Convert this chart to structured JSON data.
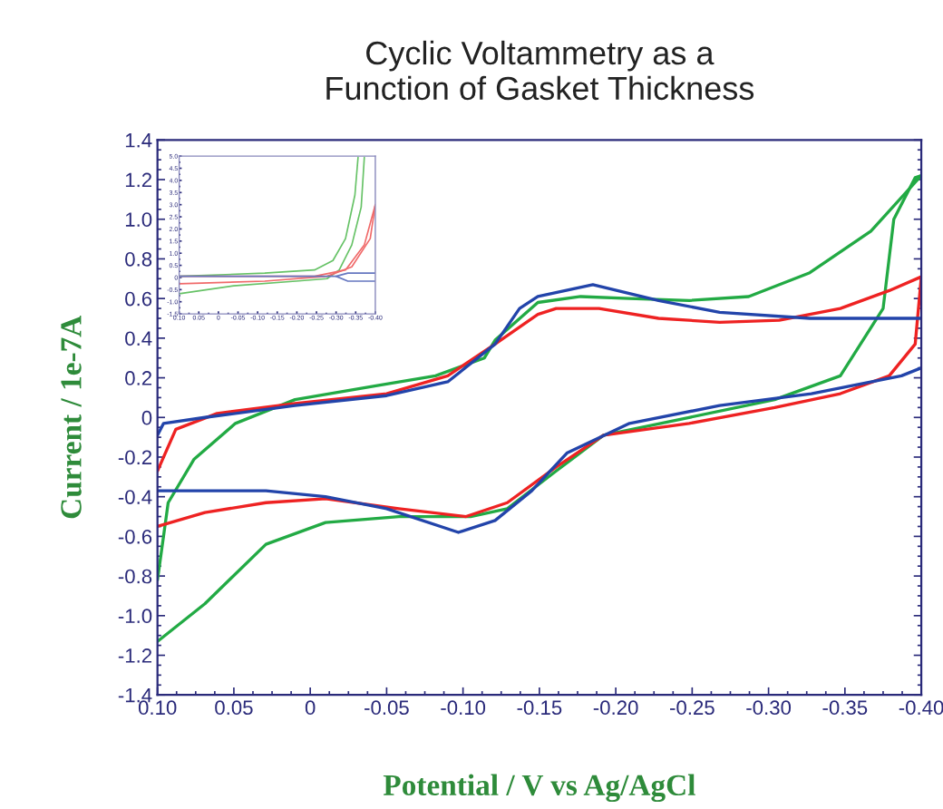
{
  "chart_data": [
    {
      "type": "line",
      "title": "Cyclic Voltammetry as a\nFunction of Gasket Thickness",
      "xlabel": "Potential / V vs Ag/AgCl",
      "ylabel": "Current / 1e-7A",
      "xlim": [
        0.1,
        -0.4
      ],
      "ylim": [
        -1.4,
        1.4
      ],
      "xticks": [
        {
          "value": 0.1,
          "label": "0.10"
        },
        {
          "value": 0.05,
          "label": "0.05"
        },
        {
          "value": 0,
          "label": "0"
        },
        {
          "value": -0.05,
          "label": "-0.05"
        },
        {
          "value": -0.1,
          "label": "-0.10"
        },
        {
          "value": -0.15,
          "label": "-0.15"
        },
        {
          "value": -0.2,
          "label": "-0.20"
        },
        {
          "value": -0.25,
          "label": "-0.25"
        },
        {
          "value": -0.3,
          "label": "-0.30"
        },
        {
          "value": -0.35,
          "label": "-0.35"
        },
        {
          "value": -0.4,
          "label": "-0.40"
        }
      ],
      "yticks": [
        1.4,
        1.2,
        {
          "value": 1.0,
          "label": "1.0"
        },
        0.8,
        0.6,
        0.4,
        0.2,
        0,
        -0.2,
        -0.4,
        -0.6,
        -0.8,
        {
          "value": -1.0,
          "label": "-1.0"
        },
        -1.2,
        -1.4
      ],
      "grid": false,
      "marker": "none",
      "line_style": "solid",
      "series": [
        {
          "color": "#22aa44",
          "x": [
            0.1,
            0.069,
            0.029,
            -0.01,
            -0.058,
            -0.105,
            -0.129,
            -0.161,
            -0.192,
            -0.248,
            -0.304,
            -0.347,
            -0.375,
            -0.382,
            -0.396,
            -0.4
          ],
          "values": [
            -1.13,
            -0.94,
            -0.64,
            -0.53,
            -0.5,
            -0.5,
            -0.46,
            -0.27,
            -0.09,
            0.0,
            0.09,
            0.21,
            0.55,
            1.0,
            1.21,
            1.22
          ]
        },
        {
          "color": "#22aa44",
          "x": [
            -0.4,
            -0.367,
            -0.327,
            -0.287,
            -0.248,
            -0.209,
            -0.177,
            -0.149,
            -0.121,
            -0.114,
            -0.082,
            -0.043,
            0.01,
            0.049,
            0.076,
            0.093,
            0.1
          ],
          "values": [
            1.22,
            0.94,
            0.73,
            0.61,
            0.59,
            0.6,
            0.61,
            0.58,
            0.39,
            0.3,
            0.21,
            0.16,
            0.09,
            -0.03,
            -0.21,
            -0.43,
            -0.82
          ]
        },
        {
          "color": "#ee2222",
          "x": [
            0.1,
            0.069,
            0.029,
            -0.01,
            -0.058,
            -0.102,
            -0.129,
            -0.161,
            -0.192,
            -0.248,
            -0.304,
            -0.347,
            -0.379,
            -0.396,
            -0.4
          ],
          "values": [
            -0.55,
            -0.48,
            -0.43,
            -0.41,
            -0.46,
            -0.5,
            -0.43,
            -0.25,
            -0.09,
            -0.03,
            0.05,
            0.12,
            0.21,
            0.37,
            0.71
          ]
        },
        {
          "color": "#ee2222",
          "x": [
            -0.4,
            -0.379,
            -0.347,
            -0.307,
            -0.268,
            -0.228,
            -0.189,
            -0.161,
            -0.149,
            -0.121,
            -0.09,
            -0.05,
            0.01,
            0.061,
            0.088,
            0.1
          ],
          "values": [
            0.71,
            0.64,
            0.55,
            0.49,
            0.48,
            0.5,
            0.55,
            0.55,
            0.52,
            0.37,
            0.21,
            0.12,
            0.07,
            0.02,
            -0.06,
            -0.27
          ]
        },
        {
          "color": "#2244aa",
          "x": [
            0.1,
            0.029,
            -0.01,
            -0.05,
            -0.097,
            -0.121,
            -0.145,
            -0.168,
            -0.209,
            -0.268,
            -0.328,
            -0.387,
            -0.4
          ],
          "values": [
            -0.37,
            -0.37,
            -0.4,
            -0.46,
            -0.58,
            -0.52,
            -0.37,
            -0.18,
            -0.03,
            0.06,
            0.12,
            0.21,
            0.25
          ]
        },
        {
          "color": "#2244aa",
          "x": [
            -0.4,
            -0.367,
            -0.327,
            -0.268,
            -0.228,
            -0.185,
            -0.149,
            -0.137,
            -0.121,
            -0.09,
            -0.05,
            0.01,
            0.069,
            0.096,
            0.1
          ],
          "values": [
            0.5,
            0.5,
            0.5,
            0.53,
            0.59,
            0.67,
            0.61,
            0.55,
            0.37,
            0.18,
            0.11,
            0.06,
            0.0,
            -0.03,
            -0.09
          ]
        }
      ]
    },
    {
      "type": "line",
      "xlim": [
        0.1,
        -0.4
      ],
      "ylim": [
        -1.5,
        5.0
      ],
      "xticks": [
        {
          "value": 0.1,
          "label": "0.10"
        },
        {
          "value": 0.05,
          "label": "0.05"
        },
        {
          "value": 0,
          "label": "0"
        },
        {
          "value": -0.05,
          "label": "-0.05"
        },
        {
          "value": -0.1,
          "label": "-0.10"
        },
        {
          "value": -0.15,
          "label": "-0.15"
        },
        {
          "value": -0.2,
          "label": "-0.20"
        },
        {
          "value": -0.25,
          "label": "-0.25"
        },
        {
          "value": -0.3,
          "label": "-0.30"
        },
        {
          "value": -0.35,
          "label": "-0.35"
        },
        {
          "value": -0.4,
          "label": "-0.40"
        }
      ],
      "yticks": [
        {
          "value": 5.0,
          "label": "5.0"
        },
        4.5,
        {
          "value": 4.0,
          "label": "4.0"
        },
        3.5,
        {
          "value": 3.0,
          "label": "3.0"
        },
        2.5,
        {
          "value": 2.0,
          "label": "2.0"
        },
        1.5,
        {
          "value": 1.0,
          "label": "1.0"
        },
        0.5,
        0,
        -0.5,
        {
          "value": -1.0,
          "label": "-1.0"
        },
        -1.5
      ],
      "grid": false,
      "marker": "none",
      "line_style": "solid",
      "series": [
        {
          "color": "#66c266",
          "x": [
            0.1,
            -0.039,
            -0.197,
            -0.277,
            -0.308,
            -0.34,
            -0.364,
            -0.372
          ],
          "values": [
            -0.67,
            -0.34,
            -0.15,
            -0.05,
            0.31,
            1.34,
            2.9,
            4.95
          ]
        },
        {
          "color": "#66c266",
          "x": [
            0.1,
            -0.118,
            -0.245,
            -0.292,
            -0.324,
            -0.348,
            -0.356
          ],
          "values": [
            0.05,
            0.18,
            0.31,
            0.7,
            1.6,
            3.4,
            4.95
          ]
        },
        {
          "color": "#f06a6a",
          "x": [
            0.1,
            -0.245,
            -0.324,
            -0.372,
            -0.4
          ],
          "values": [
            0.05,
            0.05,
            0.31,
            1.34,
            3.0
          ]
        },
        {
          "color": "#f06a6a",
          "x": [
            0.1,
            -0.118,
            -0.277,
            -0.34,
            -0.387,
            -0.4
          ],
          "values": [
            -0.26,
            -0.15,
            0.05,
            0.44,
            1.6,
            3.0
          ]
        },
        {
          "color": "#6677c0",
          "x": [
            0.1,
            -0.3,
            -0.33,
            -0.4
          ],
          "values": [
            0.05,
            0.05,
            0.18,
            0.18
          ]
        },
        {
          "color": "#6677c0",
          "x": [
            -0.3,
            -0.33,
            -0.4
          ],
          "values": [
            0.05,
            -0.15,
            -0.15
          ]
        }
      ]
    }
  ]
}
